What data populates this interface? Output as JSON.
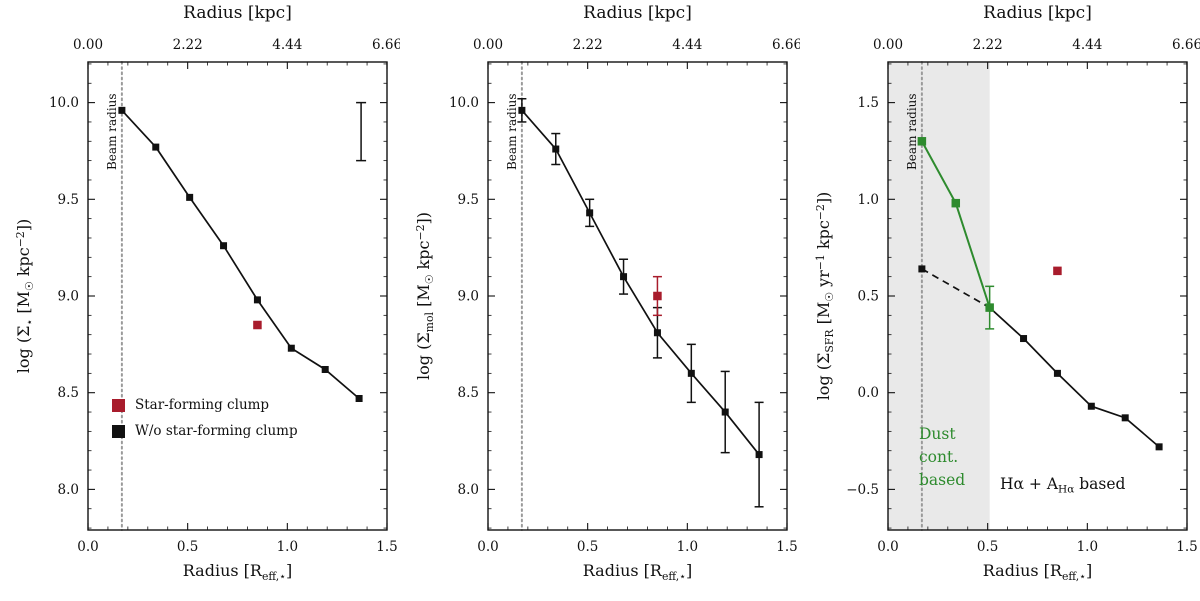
{
  "figure": {
    "bg": "#ffffff"
  },
  "colors": {
    "black_series": "#111111",
    "red_clump": "#a81c2c",
    "green_dust": "#2e8b2e",
    "beam_line": "#9a9a9a",
    "beam_label": "#b7b7b7",
    "shade": "#e9e9e9"
  },
  "chart_data": [
    {
      "type": "line",
      "name": "stellar-mass-surface-density-profile",
      "title": "",
      "top_label": "Radius [kpc]",
      "xlabel_html": "Radius [R<sub>eff,&#8902;</sub>]",
      "ylabel_html": "log (&#931;<sub>&#8902;</sub> [M<sub>&#9737;</sub> kpc<sup>&#8722;2</sup>])",
      "xlim": [
        0,
        1.5
      ],
      "ylim": [
        7.79,
        10.21
      ],
      "xticks": [
        0,
        0.5,
        1.0,
        1.5
      ],
      "xtick_labels": [
        "0.0",
        "0.5",
        "1.0",
        "1.5"
      ],
      "top_xtick_labels": [
        "0.00",
        "2.22",
        "4.44",
        "6.66"
      ],
      "yticks": [
        8.0,
        8.5,
        9.0,
        9.5,
        10.0
      ],
      "ytick_labels": [
        "8.0",
        "8.5",
        "9.0",
        "9.5",
        "10.0"
      ],
      "minor_x_step": 0.1,
      "minor_y_step": 0.1,
      "beam": {
        "x": 0.17,
        "label": "Beam radius"
      },
      "series": [
        {
          "name": "W/o star-forming clump",
          "color": "#111111",
          "line": true,
          "lw": 1.7,
          "marker": 7,
          "x": [
            0.17,
            0.34,
            0.51,
            0.68,
            0.85,
            1.02,
            1.19,
            1.36
          ],
          "y": [
            9.96,
            9.77,
            9.51,
            9.26,
            8.98,
            8.73,
            8.62,
            8.47
          ]
        },
        {
          "name": "Star-forming clump",
          "color": "#a81c2c",
          "line": false,
          "marker": 8.5,
          "x": [
            0.85
          ],
          "y": [
            8.85
          ]
        }
      ],
      "sample_errorbar": {
        "x": 1.37,
        "y": 9.85,
        "err": 0.15
      },
      "legend": [
        {
          "label": "Star-forming clump",
          "color": "#a81c2c"
        },
        {
          "label": "W/o star-forming clump",
          "color": "#111111"
        }
      ]
    },
    {
      "type": "line",
      "name": "molecular-gas-surface-density-profile",
      "title": "",
      "top_label": "Radius [kpc]",
      "xlabel_html": "Radius [R<sub>eff,&#8902;</sub>]",
      "ylabel_html": "log (&#931;<sub>mol</sub> [M<sub>&#9737;</sub> kpc<sup>&#8722;2</sup>])",
      "xlim": [
        0,
        1.5
      ],
      "ylim": [
        7.79,
        10.21
      ],
      "xticks": [
        0,
        0.5,
        1.0,
        1.5
      ],
      "xtick_labels": [
        "0.0",
        "0.5",
        "1.0",
        "1.5"
      ],
      "top_xtick_labels": [
        "0.00",
        "2.22",
        "4.44",
        "6.66"
      ],
      "yticks": [
        8.0,
        8.5,
        9.0,
        9.5,
        10.0
      ],
      "ytick_labels": [
        "8.0",
        "8.5",
        "9.0",
        "9.5",
        "10.0"
      ],
      "minor_x_step": 0.1,
      "minor_y_step": 0.1,
      "beam": {
        "x": 0.17,
        "label": "Beam radius"
      },
      "series": [
        {
          "name": "W/o star-forming clump",
          "color": "#111111",
          "line": true,
          "lw": 1.7,
          "marker": 7,
          "x": [
            0.17,
            0.34,
            0.51,
            0.68,
            0.85,
            1.02,
            1.19,
            1.36
          ],
          "y": [
            9.96,
            9.76,
            9.43,
            9.1,
            8.81,
            8.6,
            8.4,
            8.18
          ],
          "yerr": [
            0.06,
            0.08,
            0.07,
            0.09,
            0.13,
            0.15,
            0.21,
            0.27
          ]
        },
        {
          "name": "Star-forming clump",
          "color": "#a81c2c",
          "line": false,
          "marker": 8.5,
          "x": [
            0.85
          ],
          "y": [
            9.0
          ],
          "yerr": [
            0.1
          ]
        }
      ]
    },
    {
      "type": "line",
      "name": "sfr-surface-density-profile",
      "title": "",
      "top_label": "Radius [kpc]",
      "xlabel_html": "Radius [R<sub>eff,&#8902;</sub>]",
      "ylabel_html": "log (&#931;<sub>SFR</sub> [M<sub>&#9737;</sub> yr<sup>&#8722;1</sup> kpc<sup>&#8722;2</sup>])",
      "xlim": [
        0,
        1.5
      ],
      "ylim": [
        -0.71,
        1.71
      ],
      "xticks": [
        0,
        0.5,
        1.0,
        1.5
      ],
      "xtick_labels": [
        "0.0",
        "0.5",
        "1.0",
        "1.5"
      ],
      "top_xtick_labels": [
        "0.00",
        "2.22",
        "4.44",
        "6.66"
      ],
      "yticks": [
        -0.5,
        0.0,
        0.5,
        1.0,
        1.5
      ],
      "ytick_labels": [
        "−0.5",
        "0.0",
        "0.5",
        "1.0",
        "1.5"
      ],
      "minor_x_step": 0.1,
      "minor_y_step": 0.1,
      "beam": {
        "x": 0.17,
        "label": "Beam radius"
      },
      "shade": {
        "x0": 0,
        "x1": 0.51,
        "color": "#e9e9e9"
      },
      "series": [
        {
          "name": "Halpha + A_Halpha based",
          "color": "#111111",
          "line": true,
          "lw": 1.7,
          "dash_to": 1,
          "marker": 7,
          "x": [
            0.17,
            0.51,
            0.68,
            0.85,
            1.02,
            1.19,
            1.36
          ],
          "y": [
            0.64,
            0.44,
            0.28,
            0.1,
            -0.07,
            -0.13,
            -0.28
          ]
        },
        {
          "name": "Dust continuum based",
          "color": "#2e8b2e",
          "line": true,
          "lw": 2.0,
          "marker": 8.5,
          "x": [
            0.17,
            0.34,
            0.51
          ],
          "y": [
            1.3,
            0.98,
            0.44
          ],
          "yerr": [
            0,
            0,
            0.11
          ]
        },
        {
          "name": "Star-forming clump",
          "color": "#a81c2c",
          "line": false,
          "marker": 8.5,
          "x": [
            0.85
          ],
          "y": [
            0.63
          ]
        }
      ],
      "annotations": [
        {
          "html": "Dust<br>cont.<br>based",
          "color": "#2e8b2e"
        },
        {
          "html": "H&#945; + A<sub>H&#945;</sub> based",
          "color": "#111111"
        }
      ]
    }
  ]
}
